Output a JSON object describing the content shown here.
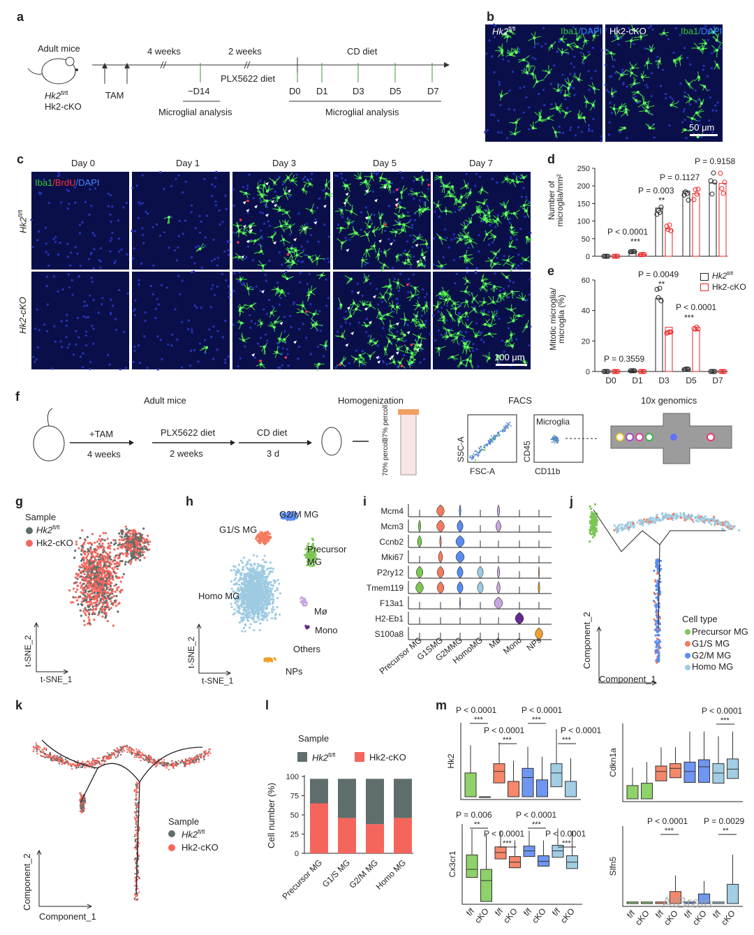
{
  "panel_labels": [
    "a",
    "b",
    "c",
    "d",
    "e",
    "f",
    "g",
    "h",
    "i",
    "j",
    "k",
    "l",
    "m"
  ],
  "a": {
    "adult_mice": "Adult mice",
    "genotype1": "Hk2",
    "genotype1_sup": "fl/fl",
    "genotype2": "Hk2-cKO",
    "tam": "TAM",
    "weeks4": "4 weeks",
    "weeks2": "2 weeks",
    "plx": "PLX5622 diet",
    "cd_diet": "CD diet",
    "d14": "−D14",
    "days": [
      "D0",
      "D1",
      "D3",
      "D5",
      "D7"
    ],
    "analysis1": "Microglial analysis",
    "analysis2": "Microglial analysis"
  },
  "b": {
    "left_label": "Hk2",
    "left_sup": "fl/fl",
    "right_label": "Hk2-cKO",
    "stain_iba1": "Iba1",
    "stain_dapi": "/DAPI",
    "scale": "50 μm"
  },
  "c": {
    "days": [
      "Day 0",
      "Day 1",
      "Day 3",
      "Day 5",
      "Day 7"
    ],
    "legend_iba1": "Iba1",
    "legend_brdu": "/BrdU",
    "legend_dapi": "/DAPI",
    "row1": "Hk2",
    "row1_sup": "fl/fl",
    "row2": "Hk2-cKO",
    "scale": "100 μm"
  },
  "legend_de": {
    "fl": "Hk2",
    "fl_sup": "fl/fl",
    "cko": "Hk2-cKO"
  },
  "chart_data": [
    {
      "id": "d",
      "type": "bar",
      "ylabel": "Number of microglia/mm²",
      "categories": [
        "D0",
        "D1",
        "D3",
        "D5",
        "D7"
      ],
      "ylim": [
        0,
        250
      ],
      "yticks": [
        0,
        50,
        100,
        150,
        200,
        250
      ],
      "series": [
        {
          "name": "Hk2 fl/fl",
          "values": [
            0,
            13,
            137,
            185,
            208
          ]
        },
        {
          "name": "Hk2-cKO",
          "values": [
            0,
            5,
            78,
            178,
            207
          ]
        }
      ],
      "annotations": [
        {
          "text": "P < 0.0001",
          "stars": "***"
        },
        {
          "text": "P = 0.003",
          "stars": "**"
        },
        {
          "text": "P = 0.1127",
          "stars": ""
        },
        {
          "text": "P = 0.9158",
          "stars": ""
        }
      ]
    },
    {
      "id": "e",
      "type": "bar",
      "ylabel": "Mitotic microglia/ microglia (%)",
      "categories": [
        "D0",
        "D1",
        "D3",
        "D5",
        "D7"
      ],
      "ylim": [
        0,
        60
      ],
      "yticks": [
        0,
        20,
        40,
        60
      ],
      "series": [
        {
          "name": "Hk2 fl/fl",
          "values": [
            0,
            0.5,
            48,
            1.5,
            0
          ]
        },
        {
          "name": "Hk2-cKO",
          "values": [
            0,
            0,
            29,
            27,
            0
          ]
        }
      ],
      "annotations": [
        {
          "text": "P = 0.3559",
          "stars": ""
        },
        {
          "text": "P = 0.0049",
          "stars": "**"
        },
        {
          "text": "P < 0.0001",
          "stars": "***"
        }
      ]
    },
    {
      "id": "l",
      "type": "bar",
      "stacked": true,
      "ylabel": "Cell number (%)",
      "categories": [
        "Precursor MG",
        "G1/S MG",
        "G2/M MG",
        "Homo MG"
      ],
      "ylim": [
        0,
        100
      ],
      "yticks": [
        0,
        25,
        50,
        75,
        100
      ],
      "legend_title": "Sample",
      "series": [
        {
          "name": "Hk2 fl/fl",
          "values": [
            32,
            51,
            59,
            51
          ]
        },
        {
          "name": "Hk2-cKO",
          "values": [
            65,
            46,
            38,
            46
          ]
        }
      ]
    }
  ],
  "f": {
    "adult_mice": "Adult mice",
    "tam": "+TAM",
    "weeks4": "4 weeks",
    "plx": "PLX5622 diet",
    "weeks2": "2 weeks",
    "cd": "CD diet",
    "d3": "3 d",
    "homog": "Homogenization",
    "facs": "FACS",
    "tenx": "10x genomics",
    "percoll37": "37% percoll",
    "percoll70": "70% percoll",
    "ssc": "SSC-A",
    "fsc": "FSC-A",
    "cd45": "CD45",
    "cd11b": "CD11b",
    "microglia": "Microglia"
  },
  "g": {
    "legend_title": "Sample",
    "fl": "Hk2",
    "fl_sup": "fl/fl",
    "cko": "Hk2-cKO",
    "xlabel": "t-SNE_1",
    "ylabel": "t-SNE_2"
  },
  "h": {
    "clusters": [
      "G2/M MG",
      "G1/S MG",
      "Precursor MG",
      "Homo MG",
      "Mø",
      "Mono",
      "Others",
      "NPs"
    ],
    "xlabel": "t-SNE_1",
    "ylabel": "t-SNE_2"
  },
  "i": {
    "genes": [
      "Mcm4",
      "Mcm3",
      "Ccnb2",
      "Mki67",
      "P2ry12",
      "Tmem119",
      "F13a1",
      "H2-Eb1",
      "S100a8"
    ],
    "cell_types": [
      "Precursor MG",
      "G1SMG",
      "G2MMG",
      "HomoMG",
      "Mø",
      "Mono",
      "NPs"
    ],
    "expression": [
      [
        0,
        0.9,
        0.2,
        0,
        0.3,
        0,
        0
      ],
      [
        0.3,
        0.9,
        0.7,
        0,
        0.6,
        0,
        0
      ],
      [
        0.5,
        0.2,
        1,
        0,
        0,
        0,
        0
      ],
      [
        0,
        0.5,
        1,
        0,
        0,
        0,
        0
      ],
      [
        0.8,
        0.8,
        0.7,
        0.7,
        0.3,
        0,
        0.1
      ],
      [
        0.9,
        0.8,
        0.7,
        0.7,
        0.4,
        0,
        0.2
      ],
      [
        0,
        0,
        0.1,
        0,
        1,
        0,
        0
      ],
      [
        0,
        0,
        0,
        0,
        0,
        1,
        0
      ],
      [
        0,
        0,
        0,
        0,
        0,
        0,
        0.9
      ]
    ],
    "colors": [
      "#7cc653",
      "#f47b5f",
      "#5a8cf0",
      "#9ecbe2",
      "#c8a5dd",
      "#652a8f",
      "#f0a02c"
    ]
  },
  "j": {
    "legend_title": "Cell type",
    "types": [
      "Precursor MG",
      "G1/S MG",
      "G2/M MG",
      "Homo MG"
    ],
    "xlabel": "Component_1",
    "ylabel": "Component_2"
  },
  "k": {
    "legend_title": "Sample",
    "fl": "Hk2",
    "fl_sup": "fl/fl",
    "cko": "Hk2-cKO",
    "xlabel": "Component_1",
    "ylabel": "Component_2"
  },
  "m": {
    "genes": [
      "Hk2",
      "Cdkn1a",
      "Cx3cr1",
      "Slfn5"
    ],
    "xticks": [
      "f/f",
      "cKO",
      "f/f",
      "cKO",
      "f/f",
      "cKO",
      "f/f",
      "cKO"
    ],
    "hk2_p": [
      "P < 0.0001",
      "P < 0.0001",
      "P < 0.0001",
      "P < 0.0001"
    ],
    "cdkn1a_p": [
      "P < 0.0001"
    ],
    "cx3cr1_p": [
      "P = 0.006",
      "P < 0.0001",
      "P < 0.0001",
      "P < 0.0001"
    ],
    "slfn5_p": [
      "P < 0.0001",
      "P = 0.0029"
    ],
    "stars3": "***",
    "stars2": "**",
    "boxes": {
      "Hk2": [
        [
          0,
          0,
          0,
          0.31,
          0.67
        ],
        [
          0,
          0,
          0,
          0,
          0
        ],
        [
          0.18,
          0.18,
          0.33,
          0.43,
          0.71
        ],
        [
          0,
          0,
          0,
          0.2,
          0.47
        ],
        [
          0,
          0,
          0.25,
          0.37,
          0.65
        ],
        [
          0,
          0,
          0,
          0.22,
          0.52
        ],
        [
          0.13,
          0.13,
          0.31,
          0.43,
          0.88
        ],
        [
          0,
          0,
          0,
          0.2,
          0.5
        ]
      ],
      "Cdkn1a": [
        [
          0,
          0,
          0,
          0.17,
          0.4
        ],
        [
          0,
          0,
          0,
          0.2,
          0.47
        ],
        [
          0.23,
          0.23,
          0.35,
          0.42,
          0.66
        ],
        [
          0.27,
          0.27,
          0.39,
          0.45,
          0.66
        ],
        [
          0.21,
          0.21,
          0.35,
          0.47,
          0.86
        ],
        [
          0.21,
          0.21,
          0.41,
          0.5,
          0.86
        ],
        [
          0.2,
          0.2,
          0.33,
          0.45,
          0.8
        ],
        [
          0.26,
          0.26,
          0.38,
          0.51,
          0.86
        ]
      ],
      "Cx3cr1": [
        [
          0.3,
          0.3,
          0.4,
          0.58,
          0.9
        ],
        [
          0.4,
          0,
          0.26,
          0.4,
          0.83
        ],
        [
          0.53,
          0.53,
          0.61,
          0.68,
          0.88
        ],
        [
          0.42,
          0.42,
          0.49,
          0.56,
          0.76
        ],
        [
          0.56,
          0.56,
          0.63,
          0.69,
          0.88
        ],
        [
          0.44,
          0.44,
          0.5,
          0.57,
          0.76
        ],
        [
          0.55,
          0.55,
          0.63,
          0.7,
          0.91
        ],
        [
          0.41,
          0.41,
          0.49,
          0.57,
          0.88
        ]
      ],
      "Slfn5": [
        [
          0,
          0,
          0,
          0.02,
          0.02
        ],
        [
          0,
          0,
          0,
          0.02,
          0.02
        ],
        [
          0,
          0,
          0,
          0.02,
          0.02
        ],
        [
          0,
          0,
          0,
          0.15,
          0.35
        ],
        [
          0,
          0,
          0,
          0.02,
          0.02
        ],
        [
          0,
          0,
          0,
          0.12,
          0.28
        ],
        [
          0,
          0,
          0,
          0.02,
          0.02
        ],
        [
          0,
          0,
          0,
          0.24,
          0.61
        ]
      ]
    }
  },
  "watermark": "AIBrain"
}
